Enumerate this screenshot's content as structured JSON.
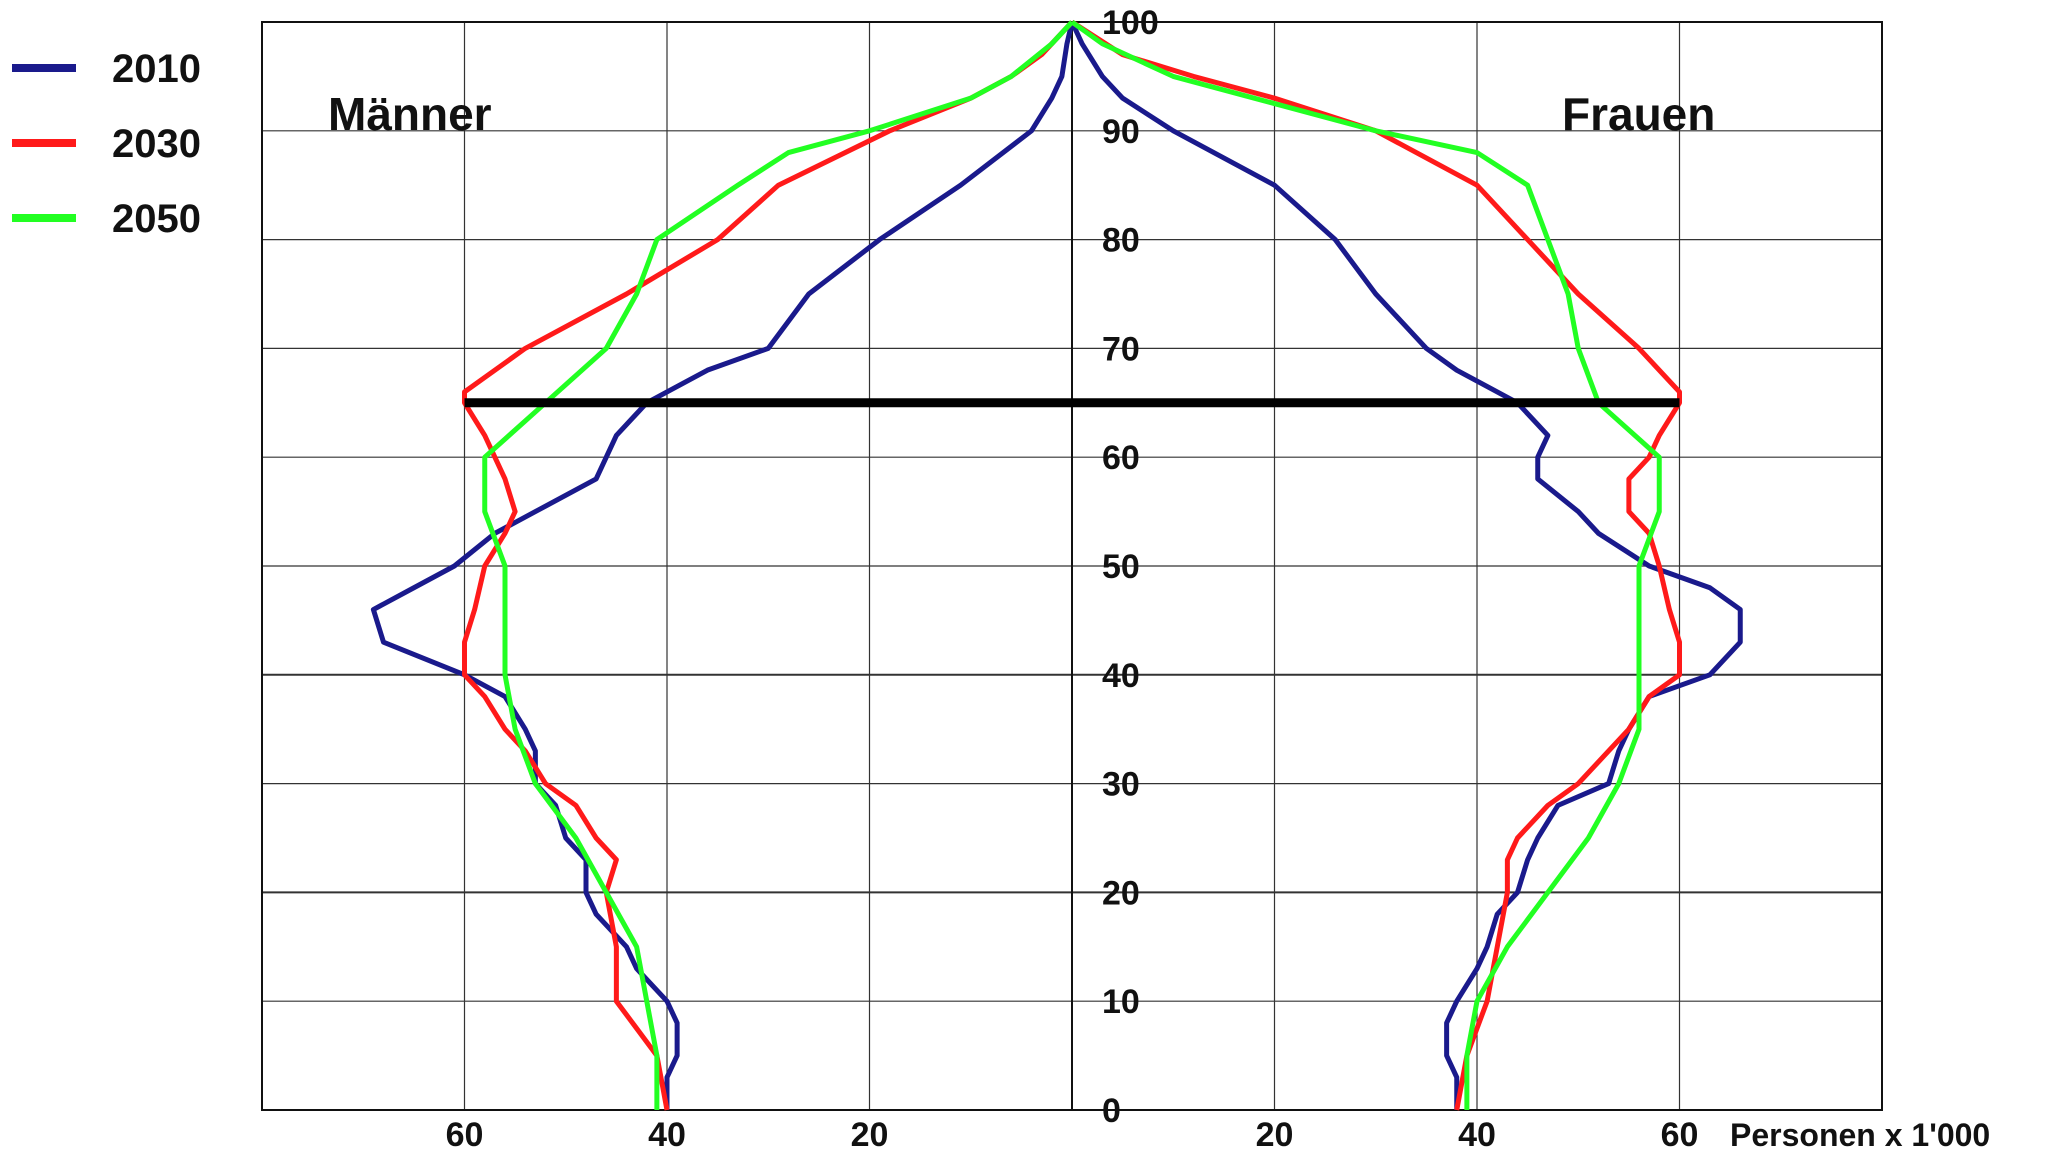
{
  "chart_data": {
    "type": "line",
    "title": "",
    "xlabel": "Personen x 1'000",
    "ylabel": "",
    "panel_labels": {
      "left": "Männer",
      "right": "Frauen"
    },
    "x_ticks_left": [
      "60",
      "40",
      "20"
    ],
    "x_ticks_right": [
      "20",
      "40",
      "60"
    ],
    "y_ticks": [
      "0",
      "10",
      "20",
      "30",
      "40",
      "50",
      "60",
      "70",
      "80",
      "90",
      "100"
    ],
    "xlim": [
      -80,
      80
    ],
    "ylim": [
      0,
      100
    ],
    "grid": true,
    "legend_position": "top-left",
    "retirement_line_age": 65,
    "retirement_line_range": [
      -60,
      60
    ],
    "series": [
      {
        "name": "2010",
        "color": "#1a1a8c",
        "age": [
          0,
          3,
          5,
          8,
          10,
          13,
          15,
          18,
          20,
          23,
          25,
          28,
          30,
          33,
          35,
          38,
          40,
          43,
          46,
          48,
          50,
          53,
          55,
          58,
          60,
          62,
          65,
          68,
          70,
          75,
          80,
          85,
          90,
          93,
          95,
          98,
          100
        ],
        "men": [
          40,
          40,
          39,
          39,
          40,
          43,
          44,
          47,
          48,
          48,
          50,
          51,
          53,
          53,
          54,
          56,
          60,
          68,
          69,
          65,
          61,
          57,
          53,
          47,
          46,
          45,
          42,
          36,
          30,
          26,
          19,
          11,
          4,
          2,
          1,
          0.5,
          0
        ],
        "women": [
          38,
          38,
          37,
          37,
          38,
          40,
          41,
          42,
          44,
          45,
          46,
          48,
          53,
          54,
          55,
          57,
          63,
          66,
          66,
          63,
          57,
          52,
          50,
          46,
          46,
          47,
          44,
          38,
          35,
          30,
          26,
          20,
          10,
          5,
          3,
          1,
          0
        ]
      },
      {
        "name": "2030",
        "color": "#ff1a1a",
        "age": [
          0,
          5,
          10,
          15,
          20,
          23,
          25,
          28,
          30,
          33,
          35,
          38,
          40,
          43,
          46,
          50,
          53,
          55,
          58,
          60,
          62,
          65,
          66,
          70,
          75,
          80,
          85,
          90,
          93,
          95,
          97,
          100
        ],
        "men": [
          40,
          41,
          45,
          45,
          46,
          45,
          47,
          49,
          52,
          54,
          56,
          58,
          60,
          60,
          59,
          58,
          56,
          55,
          56,
          57,
          58,
          60,
          60,
          54,
          44,
          35,
          29,
          18,
          10,
          6,
          3,
          0
        ],
        "women": [
          38,
          39,
          41,
          42,
          43,
          43,
          44,
          47,
          50,
          53,
          55,
          57,
          60,
          60,
          59,
          58,
          57,
          55,
          55,
          57,
          58,
          60,
          60,
          56,
          50,
          45,
          40,
          30,
          20,
          12,
          5,
          0
        ]
      },
      {
        "name": "2050",
        "color": "#22ff22",
        "age": [
          0,
          5,
          10,
          15,
          20,
          25,
          30,
          35,
          40,
          45,
          50,
          55,
          60,
          65,
          70,
          75,
          80,
          85,
          88,
          90,
          93,
          95,
          98,
          100
        ],
        "men": [
          41,
          41,
          42,
          43,
          46,
          49,
          53,
          55,
          56,
          56,
          56,
          58,
          58,
          52,
          46,
          43,
          41,
          33,
          28,
          20,
          10,
          6,
          2,
          0
        ],
        "women": [
          39,
          39,
          40,
          43,
          47,
          51,
          54,
          56,
          56,
          56,
          56,
          58,
          58,
          52,
          50,
          49,
          47,
          45,
          40,
          30,
          18,
          10,
          3,
          0
        ]
      }
    ]
  }
}
